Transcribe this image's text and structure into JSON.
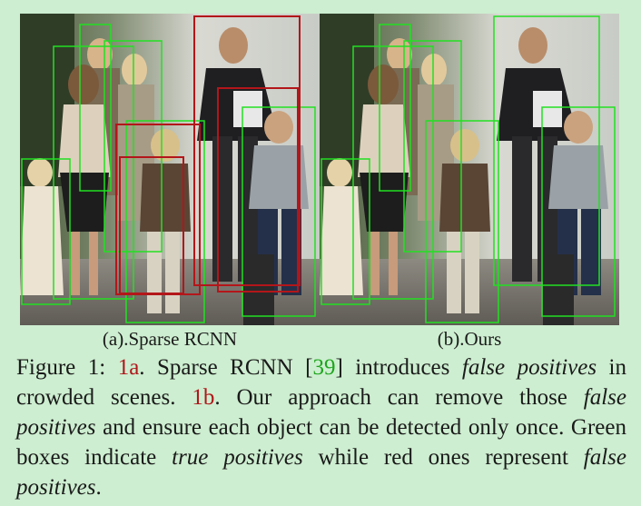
{
  "figure": {
    "panel_a_label": "(a).Sparse RCNN",
    "panel_b_label": "(b).Ours"
  },
  "caption": {
    "prefix": "Figure 1: ",
    "ref_a": "1a",
    "seg1": ". Sparse RCNN [",
    "cite": "39",
    "seg2": "] introduces ",
    "em1": "false positives",
    "seg3": " in crowded scenes. ",
    "ref_b": "1b",
    "seg4": ". Our approach can remove those ",
    "em2": "false positives",
    "seg5": " and ensure each object can be detected only once. Green boxes indicate ",
    "em3": "true positives",
    "seg6": " while red ones represent ",
    "em4": "false positives",
    "seg7": "."
  },
  "colors": {
    "true_positive": "#22e022",
    "false_positive": "#b3161a",
    "ref": "#b0171b",
    "cite": "#1ea51e"
  }
}
